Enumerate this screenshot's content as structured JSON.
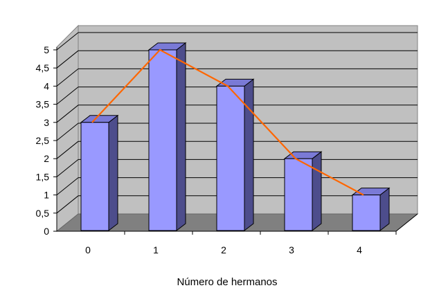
{
  "chart_data": {
    "type": "bar",
    "categories": [
      "0",
      "1",
      "2",
      "3",
      "4"
    ],
    "series": [
      {
        "values": [
          3,
          5,
          4,
          2,
          1
        ]
      }
    ],
    "overlay_line": {
      "values": [
        3,
        5,
        4,
        2,
        1
      ]
    },
    "xlabel": "Número de hermanos",
    "ylabel": "",
    "ylim": [
      0,
      5
    ],
    "yticks": [
      "0",
      "0,5",
      "1",
      "1,5",
      "2",
      "2,5",
      "3",
      "3,5",
      "4",
      "4,5",
      "5"
    ],
    "grid": true,
    "three_d": true,
    "colors": {
      "bar_front": "#9999ff",
      "bar_side": "#4d4d8c",
      "bar_top": "#7a7ad6",
      "wall": "#c0c0c0",
      "floor": "#808080",
      "line": "#ff6600"
    }
  }
}
